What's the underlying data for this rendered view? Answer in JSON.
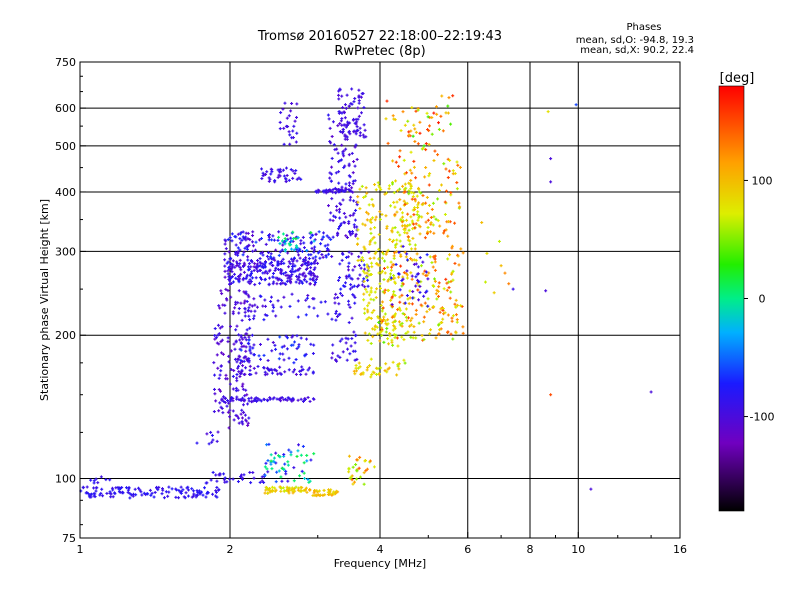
{
  "header": {
    "title_line1": "Tromsø 20160527 22:18:00–22:19:43",
    "title_line2": "RwPretec (8p)"
  },
  "phases_box": {
    "heading": "Phases",
    "o_line": "mean, sd,O: -94.8, 19.3",
    "x_line": "mean, sd,X: 90.2, 22.4"
  },
  "colorbar": {
    "label": "[deg]",
    "range": [
      -180,
      180
    ],
    "ticks": [
      {
        "value": 100,
        "label": "100"
      },
      {
        "value": 0,
        "label": "0"
      },
      {
        "value": -100,
        "label": "-100"
      }
    ]
  },
  "chart_data": {
    "type": "scatter",
    "title": "Tromsø 20160527 22:18:00–22:19:43",
    "subtitle": "RwPretec (8p)",
    "xlabel": "Frequency [MHz]",
    "ylabel": "Stationary phase Virtual Height [km]",
    "x_scale": "log",
    "y_scale": "log",
    "xlim": [
      1,
      16
    ],
    "ylim": [
      75,
      750
    ],
    "x_ticks": [
      1,
      2,
      4,
      6,
      8,
      10,
      16
    ],
    "x_tick_labels": [
      "1",
      "2",
      "4",
      "6",
      "8",
      "10",
      "16"
    ],
    "y_ticks": [
      75,
      100,
      200,
      300,
      400,
      500,
      600,
      750
    ],
    "y_tick_labels": [
      "75",
      "100",
      "200",
      "300",
      "400",
      "500",
      "600",
      "750"
    ],
    "x_gridlines": [
      2,
      4,
      6,
      8,
      10
    ],
    "y_gridlines": [
      100,
      200,
      300,
      400,
      500,
      600
    ],
    "color_variable": "phase [deg]",
    "regions": [
      {
        "f": [
          1.0,
          1.9
        ],
        "h": [
          91,
          96
        ],
        "phase": [
          -95,
          -75
        ],
        "n": 130
      },
      {
        "f": [
          1.05,
          1.15
        ],
        "h": [
          95,
          101
        ],
        "phase": [
          -100,
          -80
        ],
        "n": 8
      },
      {
        "f": [
          1.75,
          2.15
        ],
        "h": [
          97,
          103
        ],
        "phase": [
          -100,
          -80
        ],
        "n": 20
      },
      {
        "f": [
          1.7,
          1.9
        ],
        "h": [
          118,
          125
        ],
        "phase": [
          -110,
          -80
        ],
        "n": 8
      },
      {
        "f": [
          2.1,
          2.35
        ],
        "h": [
          98,
          103
        ],
        "phase": [
          -100,
          -80
        ],
        "n": 12
      },
      {
        "f": [
          2.35,
          2.85
        ],
        "h": [
          93,
          96
        ],
        "phase": [
          60,
          110
        ],
        "n": 55
      },
      {
        "f": [
          2.85,
          3.3
        ],
        "h": [
          92,
          95
        ],
        "phase": [
          80,
          115
        ],
        "n": 40
      },
      {
        "f": [
          2.35,
          2.95
        ],
        "h": [
          98,
          118
        ],
        "phase": [
          -100,
          20
        ],
        "n": 60
      },
      {
        "f": [
          3.45,
          3.9
        ],
        "h": [
          97,
          112
        ],
        "phase": [
          50,
          150
        ],
        "n": 30
      },
      {
        "f": [
          1.85,
          2.2
        ],
        "h": [
          125,
          250
        ],
        "phase": [
          -115,
          -85
        ],
        "n": 170
      },
      {
        "f": [
          1.9,
          2.95
        ],
        "h": [
          145,
          148
        ],
        "phase": [
          -105,
          -85
        ],
        "n": 70
      },
      {
        "f": [
          2.05,
          2.95
        ],
        "h": [
          165,
          172
        ],
        "phase": [
          -110,
          -80
        ],
        "n": 50
      },
      {
        "f": [
          2.1,
          2.95
        ],
        "h": [
          175,
          200
        ],
        "phase": [
          -105,
          -60
        ],
        "n": 60
      },
      {
        "f": [
          2.1,
          3.15
        ],
        "h": [
          215,
          245
        ],
        "phase": [
          -105,
          -70
        ],
        "n": 50
      },
      {
        "f": [
          1.95,
          3.0
        ],
        "h": [
          255,
          290
        ],
        "phase": [
          -110,
          -75
        ],
        "n": 260
      },
      {
        "f": [
          1.95,
          3.2
        ],
        "h": [
          290,
          330
        ],
        "phase": [
          -110,
          -60
        ],
        "n": 150
      },
      {
        "f": [
          2.5,
          2.95
        ],
        "h": [
          300,
          330
        ],
        "phase": [
          -40,
          20
        ],
        "n": 25
      },
      {
        "f": [
          2.3,
          2.8
        ],
        "h": [
          420,
          450
        ],
        "phase": [
          -105,
          -80
        ],
        "n": 40
      },
      {
        "f": [
          2.5,
          2.75
        ],
        "h": [
          500,
          620
        ],
        "phase": [
          -105,
          -85
        ],
        "n": 25
      },
      {
        "f": [
          2.95,
          3.5
        ],
        "h": [
          398,
          405
        ],
        "phase": [
          -100,
          -85
        ],
        "n": 40
      },
      {
        "f": [
          3.15,
          3.6
        ],
        "h": [
          320,
          590
        ],
        "phase": [
          -110,
          -80
        ],
        "n": 140
      },
      {
        "f": [
          3.3,
          3.75
        ],
        "h": [
          520,
          660
        ],
        "phase": [
          -105,
          -85
        ],
        "n": 60
      },
      {
        "f": [
          3.2,
          3.6
        ],
        "h": [
          175,
          245
        ],
        "phase": [
          -105,
          -80
        ],
        "n": 50
      },
      {
        "f": [
          3.3,
          3.8
        ],
        "h": [
          250,
          300
        ],
        "phase": [
          -110,
          -70
        ],
        "n": 50
      },
      {
        "f": [
          3.55,
          4.2
        ],
        "h": [
          165,
          175
        ],
        "phase": [
          60,
          110
        ],
        "n": 25
      },
      {
        "f": [
          3.6,
          4.8
        ],
        "h": [
          280,
          420
        ],
        "phase": [
          60,
          110
        ],
        "n": 160
      },
      {
        "f": [
          3.7,
          4.3
        ],
        "h": [
          190,
          280
        ],
        "phase": [
          60,
          100
        ],
        "n": 90
      },
      {
        "f": [
          4.0,
          5.9
        ],
        "h": [
          195,
          300
        ],
        "phase": [
          50,
          160
        ],
        "n": 200
      },
      {
        "f": [
          4.2,
          5.8
        ],
        "h": [
          320,
          470
        ],
        "phase": [
          50,
          160
        ],
        "n": 120
      },
      {
        "f": [
          4.1,
          5.6
        ],
        "h": [
          470,
          640
        ],
        "phase": [
          30,
          170
        ],
        "n": 60
      },
      {
        "f": [
          4.2,
          5.0
        ],
        "h": [
          230,
          310
        ],
        "phase": [
          -110,
          -70
        ],
        "n": 40
      },
      {
        "f": [
          3.8,
          4.5
        ],
        "h": [
          160,
          215
        ],
        "phase": [
          40,
          110
        ],
        "n": 30
      },
      {
        "f": [
          5.5,
          7.3
        ],
        "h": [
          225,
          320
        ],
        "phase": [
          40,
          130
        ],
        "n": 10
      }
    ],
    "sparse_points": [
      {
        "f": 6.4,
        "h": 345,
        "phase": 100
      },
      {
        "f": 7.0,
        "h": 280,
        "phase": 100
      },
      {
        "f": 7.4,
        "h": 250,
        "phase": -90
      },
      {
        "f": 8.7,
        "h": 590,
        "phase": 80
      },
      {
        "f": 8.8,
        "h": 470,
        "phase": -100
      },
      {
        "f": 8.8,
        "h": 420,
        "phase": -100
      },
      {
        "f": 8.6,
        "h": 248,
        "phase": -100
      },
      {
        "f": 8.8,
        "h": 150,
        "phase": 150
      },
      {
        "f": 9.9,
        "h": 610,
        "phase": -60
      },
      {
        "f": 10.6,
        "h": 95,
        "phase": -100
      },
      {
        "f": 14.0,
        "h": 152,
        "phase": -100
      }
    ]
  }
}
